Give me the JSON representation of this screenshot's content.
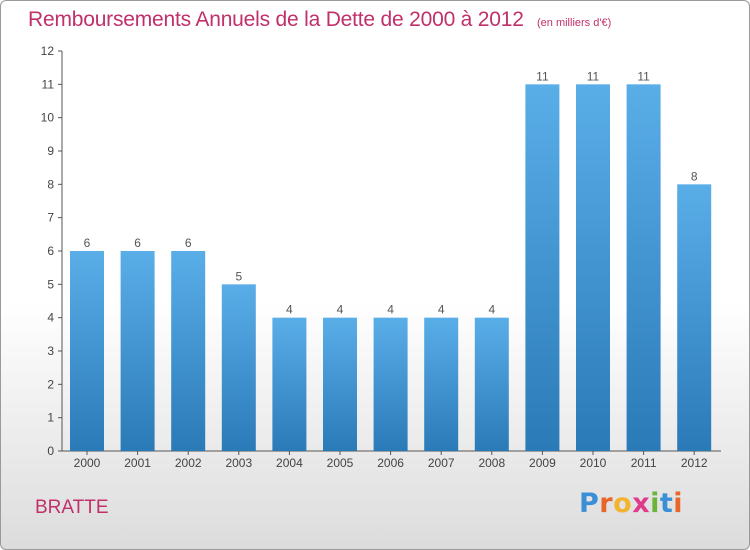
{
  "header": {
    "title": "Remboursements Annuels de la Dette de 2000 à 2012",
    "unit": "(en milliers d'€)"
  },
  "footer": {
    "commune": "BRATTE",
    "logo_letters": [
      "P",
      "r",
      "o",
      "x",
      "i",
      "t",
      "i"
    ],
    "logo_colors": [
      "#3a8fd6",
      "#e8662a",
      "#f2b32e",
      "#e03a8a",
      "#6ab43c",
      "#3a8fd6",
      "#e8662a"
    ]
  },
  "chart_data": {
    "type": "bar",
    "categories": [
      "2000",
      "2001",
      "2002",
      "2003",
      "2004",
      "2005",
      "2006",
      "2007",
      "2008",
      "2009",
      "2010",
      "2011",
      "2012"
    ],
    "values": [
      6,
      6,
      6,
      5,
      4,
      4,
      4,
      4,
      4,
      11,
      11,
      11,
      8
    ],
    "data_labels": [
      "6",
      "6",
      "6",
      "5",
      "4",
      "4",
      "4",
      "4",
      "4",
      "11",
      "11",
      "11",
      "8"
    ],
    "ylim": [
      0,
      12
    ],
    "yticks": [
      "0",
      "1",
      "2",
      "3",
      "4",
      "5",
      "6",
      "7",
      "8",
      "9",
      "10",
      "11",
      "12"
    ],
    "bar_color_top": "#5aaee8",
    "bar_color_bottom": "#2a7ab8",
    "grid": false
  }
}
